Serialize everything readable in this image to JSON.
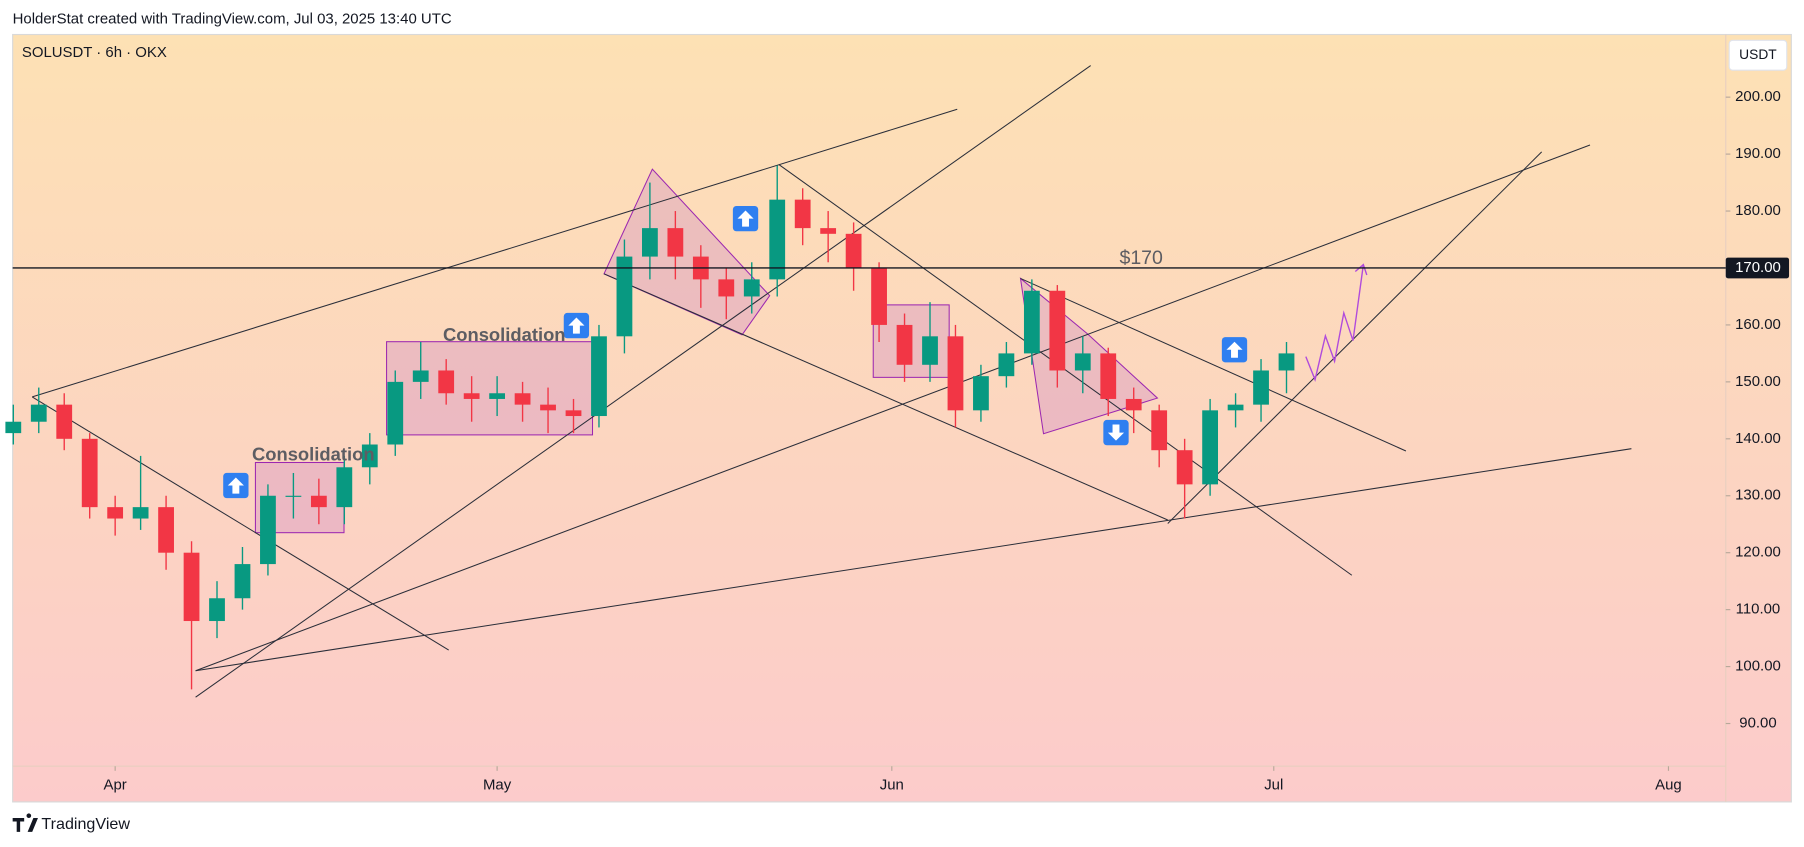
{
  "header": {
    "credit": "HolderStat created with TradingView.com, Jul 03, 2025 13:40 UTC"
  },
  "footer": {
    "brand": "TradingView"
  },
  "chart_data": {
    "type": "candlestick",
    "title": "SOLUSDT · 6h · OKX",
    "currency": "USDT",
    "up_color": "#089981",
    "down_color": "#f23645",
    "grid": false,
    "x": [
      -8,
      -6,
      -4,
      -2,
      0,
      2,
      4,
      6,
      8,
      10,
      12,
      14,
      16,
      18,
      20,
      22,
      24,
      26,
      28,
      30,
      32,
      34,
      36,
      38,
      40,
      42,
      44,
      46,
      48,
      50,
      52,
      54,
      56,
      58,
      60,
      62,
      64,
      66,
      68,
      70,
      72,
      74,
      76,
      78,
      80,
      82,
      84,
      86,
      88,
      90,
      92
    ],
    "open": [
      141,
      143,
      146,
      140,
      128,
      126,
      128,
      120,
      108,
      112,
      118,
      130,
      130,
      128,
      135,
      139,
      150,
      152,
      148,
      147,
      148,
      146,
      145,
      144,
      158,
      172,
      177,
      172,
      168,
      165,
      168,
      182,
      177,
      176,
      170,
      160,
      153,
      158,
      145,
      151,
      155,
      166,
      152,
      155,
      147,
      145,
      138,
      132,
      145,
      146,
      152
    ],
    "high": [
      146,
      149,
      148,
      141,
      130,
      137,
      130,
      122,
      115,
      121,
      132,
      134,
      133,
      137,
      141,
      152,
      157,
      154,
      151,
      151,
      150,
      149,
      147,
      160,
      175,
      185,
      180,
      174,
      170,
      171,
      188,
      184,
      180,
      178,
      171,
      162,
      164,
      160,
      153,
      157,
      168,
      167,
      158,
      156,
      149,
      146,
      140,
      147,
      148,
      154,
      157
    ],
    "low": [
      139,
      141,
      138,
      126,
      123,
      124,
      117,
      96,
      105,
      110,
      116,
      126,
      125,
      125,
      132,
      137,
      147,
      146,
      143,
      144,
      143,
      141,
      141,
      142,
      155,
      168,
      168,
      163,
      161,
      162,
      165,
      174,
      171,
      166,
      157,
      150,
      150,
      142,
      143,
      149,
      153,
      149,
      148,
      144,
      141,
      135,
      126,
      130,
      142,
      143,
      148
    ],
    "close": [
      143,
      146,
      140,
      128,
      126,
      128,
      120,
      108,
      112,
      118,
      130,
      130,
      128,
      135,
      139,
      150,
      152,
      148,
      147,
      148,
      146,
      145,
      144,
      158,
      172,
      177,
      172,
      168,
      165,
      168,
      182,
      177,
      176,
      170,
      160,
      153,
      158,
      145,
      151,
      155,
      166,
      152,
      155,
      147,
      145,
      138,
      132,
      145,
      146,
      152,
      155
    ],
    "xlim": [
      -8.05,
      126.5
    ],
    "xticks": [
      {
        "value": 0,
        "label": "Apr"
      },
      {
        "value": 30,
        "label": "May"
      },
      {
        "value": 61,
        "label": "Jun"
      },
      {
        "value": 91,
        "label": "Jul"
      },
      {
        "value": 122,
        "label": "Aug"
      }
    ],
    "ylim": [
      82.5,
      211
    ],
    "yticks": [
      {
        "value": 90,
        "label": "90.00"
      },
      {
        "value": 100,
        "label": "100.00"
      },
      {
        "value": 110,
        "label": "110.00"
      },
      {
        "value": 120,
        "label": "120.00"
      },
      {
        "value": 130,
        "label": "130.00"
      },
      {
        "value": 140,
        "label": "140.00"
      },
      {
        "value": 150,
        "label": "150.00"
      },
      {
        "value": 160,
        "label": "160.00"
      },
      {
        "value": 170,
        "label": "170.00"
      },
      {
        "value": 180,
        "label": "180.00"
      },
      {
        "value": 190,
        "label": "190.00"
      },
      {
        "value": 200,
        "label": "200.00"
      }
    ],
    "price_line": {
      "value": 170,
      "label": "170.00"
    },
    "annotations": [
      "Consolidation",
      "Consolidation",
      "$170"
    ]
  }
}
